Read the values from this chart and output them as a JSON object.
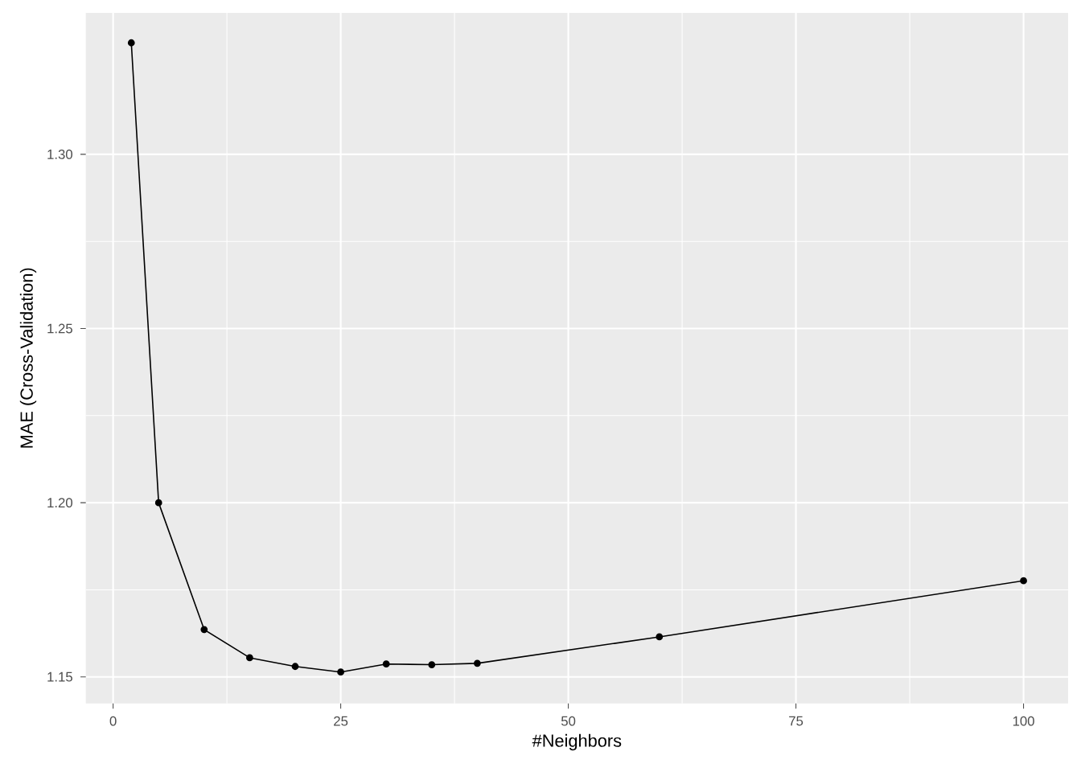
{
  "chart_data": {
    "type": "line",
    "xlabel": "#Neighbors",
    "ylabel": "MAE (Cross-Validation)",
    "x": [
      2,
      5,
      10,
      15,
      20,
      25,
      30,
      35,
      40,
      60,
      100
    ],
    "series": [
      {
        "color": "#000000",
        "values": [
          1.332,
          1.2,
          1.1636,
          1.1555,
          1.153,
          1.1514,
          1.1537,
          1.1535,
          1.1539,
          1.1615,
          1.1776
        ]
      }
    ],
    "xlim": [
      -3,
      104.9
    ],
    "ylim": [
      1.1424,
      1.3406
    ],
    "xticks": [
      0,
      25,
      50,
      75,
      100
    ],
    "yticks": [
      {
        "value": 1.15,
        "label": "1.15"
      },
      {
        "value": 1.2,
        "label": "1.20"
      },
      {
        "value": 1.25,
        "label": "1.25"
      },
      {
        "value": 1.3,
        "label": "1.30"
      }
    ],
    "grid": true,
    "marker": "circle",
    "line_style": "solid"
  }
}
